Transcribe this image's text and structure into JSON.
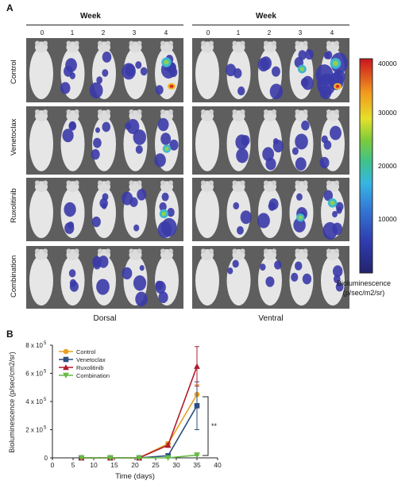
{
  "panel_a": {
    "label": "A",
    "week_heading": "Week",
    "weeks": [
      "0",
      "1",
      "2",
      "3",
      "4"
    ],
    "rows": [
      "Control",
      "Venetoclax",
      "Ruxolitinib",
      "Combination"
    ],
    "views": [
      "Dorsal",
      "Ventral"
    ],
    "colorbar": {
      "ticks": [
        "40000",
        "30000",
        "20000",
        "10000"
      ],
      "title_line1": "Bioluminescence",
      "title_line2": "(p/sec/m2/sr)",
      "colors": [
        "#2b2b8c",
        "#2f56c8",
        "#33b0e0",
        "#3fbf7a",
        "#9ed03a",
        "#f2e02a",
        "#f08a1e",
        "#c8141e"
      ]
    },
    "signal_level": {
      "Control": {
        "dorsal": [
          0,
          0.2,
          0.2,
          0.25,
          0.55
        ],
        "ventral": [
          0,
          0.15,
          0.2,
          0.35,
          0.7
        ]
      },
      "Venetoclax": {
        "dorsal": [
          0,
          0.15,
          0.2,
          0.2,
          0.3
        ],
        "ventral": [
          0,
          0.15,
          0.2,
          0.25,
          0.25
        ]
      },
      "Ruxolitinib": {
        "dorsal": [
          0,
          0.15,
          0.2,
          0.2,
          0.4
        ],
        "ventral": [
          0,
          0.15,
          0.15,
          0.3,
          0.45
        ]
      },
      "Combination": {
        "dorsal": [
          0,
          0.15,
          0.2,
          0.2,
          0.15
        ],
        "ventral": [
          0,
          0.05,
          0.1,
          0.15,
          0.15
        ]
      }
    }
  },
  "panel_b": {
    "label": "B",
    "significance": "**",
    "ylabel_text": "Bioluminescence (p/sec/cm2/sr)",
    "ytick_labels": [
      "0",
      "2 x 10",
      "4 x 10",
      "6 x 10",
      "8 x 10"
    ],
    "ytick_exp": "5",
    "chart_data": {
      "type": "line",
      "xlabel": "Time (days)",
      "ylabel": "Bioluminescence (p/sec/cm2/sr)",
      "x_ticks": [
        0,
        5,
        10,
        15,
        20,
        25,
        30,
        35,
        40
      ],
      "xlim": [
        0,
        40
      ],
      "ylim": [
        0,
        800000
      ],
      "x": [
        7,
        14,
        21,
        28,
        35
      ],
      "series": [
        {
          "name": "Control",
          "color": "#e8a020",
          "marker": "circle",
          "values": [
            0,
            0,
            0,
            100000,
            450000
          ],
          "err": [
            0,
            0,
            0,
            15000,
            70000
          ]
        },
        {
          "name": "Venetoclax",
          "color": "#2e4f7f",
          "marker": "square",
          "values": [
            0,
            0,
            0,
            15000,
            370000
          ],
          "err": [
            0,
            0,
            0,
            5000,
            170000
          ]
        },
        {
          "name": "Ruxolitinib",
          "color": "#b01c2e",
          "marker": "triangle-up",
          "values": [
            0,
            0,
            0,
            90000,
            650000
          ],
          "err": [
            0,
            0,
            0,
            12000,
            140000
          ]
        },
        {
          "name": "Combination",
          "color": "#66bb44",
          "marker": "triangle-down",
          "values": [
            0,
            0,
            0,
            0,
            20000
          ],
          "err": [
            0,
            0,
            0,
            0,
            5000
          ]
        }
      ],
      "legend": "top-left"
    }
  }
}
